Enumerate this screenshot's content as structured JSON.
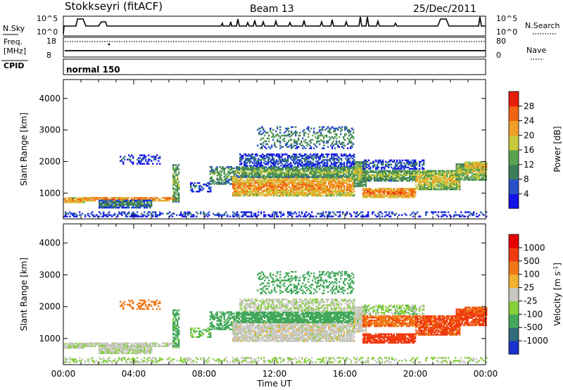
{
  "header": {
    "station": "Stokkseyri (fitACF)",
    "beam": "Beam 13",
    "date": "25/Dec/2011"
  },
  "top_panels": {
    "nsky_label": "N.Sky",
    "nsearch_label": "N.Search",
    "nsky_ticks": [
      "10^5",
      "10^0"
    ],
    "nsearch_ticks": [
      "10^5",
      "10^0"
    ],
    "freq_label_1": "Freq.",
    "freq_label_2": "[MHz]",
    "freq_ticks": [
      "18",
      "8"
    ],
    "nave_label": "Nave",
    "nave_ticks": [
      "80",
      "0"
    ],
    "cpid_label": "CPID",
    "cpid_value": "normal 150"
  },
  "chart_data": [
    {
      "type": "heatmap",
      "name": "power",
      "ylabel": "Slant Range [km]",
      "xlabel": "Time UT",
      "xlim_hours": [
        0,
        24
      ],
      "ylim": [
        180,
        4600
      ],
      "yticks": [
        "1000",
        "2000",
        "3000",
        "4000"
      ],
      "colorbar_label": "Power [dB]",
      "colorbar_ticks": [
        "28",
        "24",
        "20",
        "16",
        "12",
        "8",
        "4"
      ],
      "colors": [
        "#1414e6",
        "#2850c8",
        "#3c7d5a",
        "#5aa050",
        "#c8c83c",
        "#f0a028",
        "#f06414",
        "#e61e0a"
      ]
    },
    {
      "type": "heatmap",
      "name": "velocity",
      "ylabel": "Slant Range [km]",
      "xlabel": "Time UT",
      "xlim_hours": [
        0,
        24
      ],
      "ylim": [
        180,
        4600
      ],
      "yticks": [
        "1000",
        "2000",
        "3000",
        "4000"
      ],
      "xticks": [
        "00:00",
        "04:00",
        "08:00",
        "12:00",
        "16:00",
        "20:00",
        "00:00"
      ],
      "colorbar_label": "Velocity [m s^-1]",
      "colorbar_ticks": [
        "1000",
        "500",
        "100",
        "25",
        "-25",
        "-100",
        "-500",
        "-1000"
      ],
      "colors": [
        "#1a33cc",
        "#2f6b7a",
        "#43a85a",
        "#86cf3c",
        "#c8c8c0",
        "#f0b030",
        "#f07818",
        "#f03a10",
        "#e60000"
      ]
    }
  ]
}
